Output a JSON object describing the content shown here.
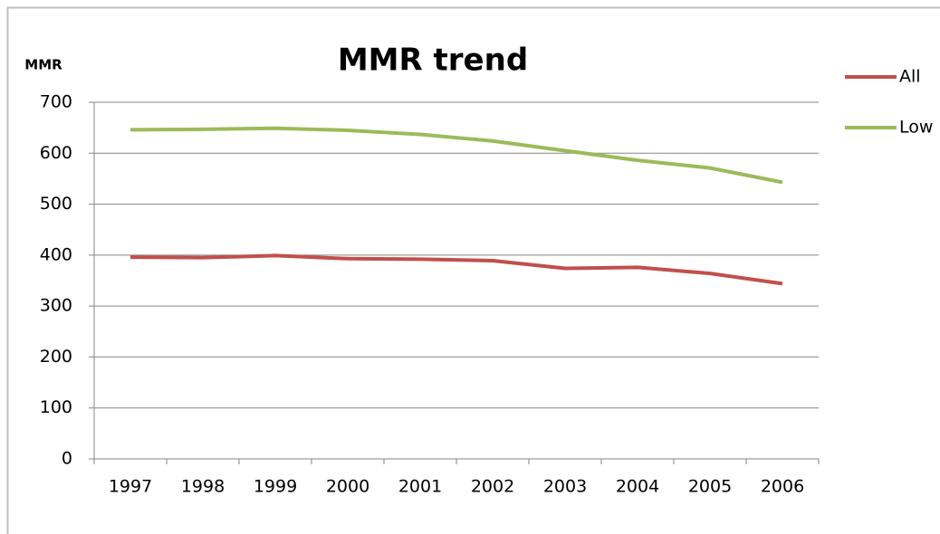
{
  "chart_data": {
    "type": "line",
    "title": "MMR trend",
    "y_label": "MMR",
    "categories": [
      "1997",
      "1998",
      "1999",
      "2000",
      "2001",
      "2002",
      "2003",
      "2004",
      "2005",
      "2006"
    ],
    "series": [
      {
        "name": "All",
        "color": "#c0504d",
        "values": [
          396,
          395,
          399,
          393,
          392,
          389,
          374,
          376,
          364,
          344
        ]
      },
      {
        "name": "Low",
        "color": "#9bbb59",
        "values": [
          646,
          647,
          649,
          645,
          637,
          624,
          605,
          586,
          571,
          543
        ]
      }
    ],
    "ylim": [
      0,
      700
    ],
    "yticks": [
      0,
      100,
      200,
      300,
      400,
      500,
      600,
      700
    ],
    "grid": true,
    "legend": "right"
  }
}
